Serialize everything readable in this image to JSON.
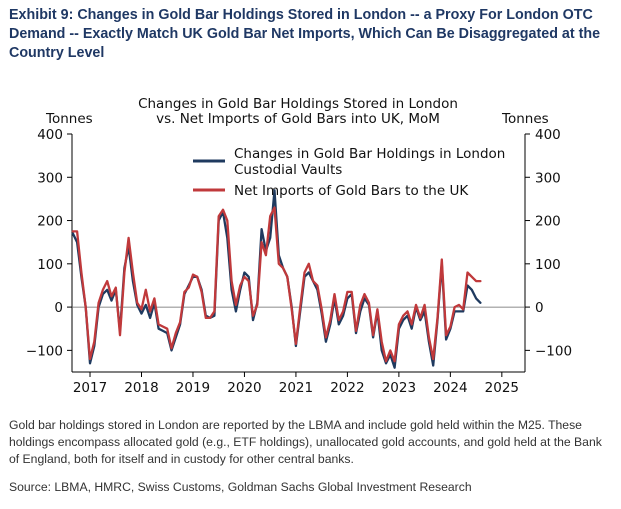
{
  "exhibit": {
    "title": "Exhibit 9: Changes in Gold Bar Holdings Stored in London -- a Proxy For London OTC Demand -- Exactly Match UK Gold Bar Net Imports, Which Can Be Disaggregated at the Country Level",
    "footnote": "Gold bar holdings stored in London are reported by the LBMA and include gold held within the M25. These holdings encompass allocated gold (e.g., ETF holdings), unallocated gold accounts, and gold held at the Bank of England, both for itself and in custody for other central banks.",
    "source": "Source: LBMA, HMRC, Swiss Customs, Goldman Sachs Global Investment Research"
  },
  "colors": {
    "series1": "#1f3a5f",
    "series2": "#c0393b",
    "axis": "#000000",
    "zero_line": "#666666"
  },
  "chart_data": {
    "type": "line",
    "title": "Changes in Gold Bar Holdings Stored in London",
    "subtitle": "vs. Net Imports of Gold Bars into UK, MoM",
    "ylabel_left": "Tonnes",
    "ylabel_right": "Tonnes",
    "ylim": [
      -150,
      400
    ],
    "xlim": [
      2016.65,
      2025.45
    ],
    "yticks": [
      -100,
      0,
      100,
      200,
      300,
      400
    ],
    "ytick_labels": [
      "−100",
      "0",
      "100",
      "200",
      "300",
      "400"
    ],
    "xticks": [
      2017,
      2018,
      2019,
      2020,
      2021,
      2022,
      2023,
      2024,
      2025
    ],
    "xtick_labels": [
      "2017",
      "2018",
      "2019",
      "2020",
      "2021",
      "2022",
      "2023",
      "2024",
      "2025"
    ],
    "legend_position": "top-center",
    "series": [
      {
        "name": "Changes in Gold Bar Holdings in London Custodial Vaults",
        "legend_line1": "Changes in Gold Bar Holdings in London",
        "legend_line2": "Custodial Vaults",
        "color": "#1f3a5f",
        "x": [
          2016.667,
          2016.75,
          2016.833,
          2016.917,
          2017.0,
          2017.083,
          2017.167,
          2017.25,
          2017.333,
          2017.417,
          2017.5,
          2017.583,
          2017.667,
          2017.75,
          2017.833,
          2017.917,
          2018.0,
          2018.083,
          2018.167,
          2018.25,
          2018.333,
          2018.417,
          2018.5,
          2018.583,
          2018.667,
          2018.75,
          2018.833,
          2018.917,
          2019.0,
          2019.083,
          2019.167,
          2019.25,
          2019.333,
          2019.417,
          2019.5,
          2019.583,
          2019.667,
          2019.75,
          2019.833,
          2019.917,
          2020.0,
          2020.083,
          2020.167,
          2020.25,
          2020.333,
          2020.417,
          2020.5,
          2020.583,
          2020.667,
          2020.75,
          2020.833,
          2020.917,
          2021.0,
          2021.083,
          2021.167,
          2021.25,
          2021.333,
          2021.417,
          2021.5,
          2021.583,
          2021.667,
          2021.75,
          2021.833,
          2021.917,
          2022.0,
          2022.083,
          2022.167,
          2022.25,
          2022.333,
          2022.417,
          2022.5,
          2022.583,
          2022.667,
          2022.75,
          2022.833,
          2022.917,
          2023.0,
          2023.083,
          2023.167,
          2023.25,
          2023.333,
          2023.417,
          2023.5,
          2023.583,
          2023.667,
          2023.75,
          2023.833,
          2023.917,
          2024.0,
          2024.083,
          2024.167,
          2024.25,
          2024.333,
          2024.417,
          2024.5,
          2024.583
        ],
        "values": [
          170,
          150,
          70,
          0,
          -130,
          -90,
          0,
          30,
          40,
          15,
          40,
          -55,
          90,
          140,
          60,
          5,
          -15,
          5,
          -25,
          10,
          -50,
          -55,
          -60,
          -100,
          -70,
          -40,
          30,
          50,
          70,
          70,
          40,
          -20,
          -25,
          -20,
          200,
          220,
          160,
          40,
          -10,
          40,
          80,
          70,
          -30,
          10,
          180,
          130,
          160,
          270,
          120,
          90,
          70,
          0,
          -90,
          -10,
          70,
          80,
          60,
          40,
          -15,
          -80,
          -40,
          20,
          -40,
          -20,
          20,
          30,
          -60,
          -10,
          20,
          5,
          -70,
          -10,
          -100,
          -130,
          -110,
          -140,
          -50,
          -30,
          -20,
          -50,
          0,
          -30,
          -10,
          -80,
          -135,
          -30,
          100,
          -75,
          -50,
          -10,
          -10,
          -10,
          50,
          40,
          20,
          10
        ]
      },
      {
        "name": "Net Imports of Gold Bars to the UK",
        "legend_line1": "Net Imports of Gold Bars to the UK",
        "color": "#c0393b",
        "x": [
          2016.667,
          2016.75,
          2016.833,
          2016.917,
          2017.0,
          2017.083,
          2017.167,
          2017.25,
          2017.333,
          2017.417,
          2017.5,
          2017.583,
          2017.667,
          2017.75,
          2017.833,
          2017.917,
          2018.0,
          2018.083,
          2018.167,
          2018.25,
          2018.333,
          2018.417,
          2018.5,
          2018.583,
          2018.667,
          2018.75,
          2018.833,
          2018.917,
          2019.0,
          2019.083,
          2019.167,
          2019.25,
          2019.333,
          2019.417,
          2019.5,
          2019.583,
          2019.667,
          2019.75,
          2019.833,
          2019.917,
          2020.0,
          2020.083,
          2020.167,
          2020.25,
          2020.333,
          2020.417,
          2020.5,
          2020.583,
          2020.667,
          2020.75,
          2020.833,
          2020.917,
          2021.0,
          2021.083,
          2021.167,
          2021.25,
          2021.333,
          2021.417,
          2021.5,
          2021.583,
          2021.667,
          2021.75,
          2021.833,
          2021.917,
          2022.0,
          2022.083,
          2022.167,
          2022.25,
          2022.333,
          2022.417,
          2022.5,
          2022.583,
          2022.667,
          2022.75,
          2022.833,
          2022.917,
          2023.0,
          2023.083,
          2023.167,
          2023.25,
          2023.333,
          2023.417,
          2023.5,
          2023.583,
          2023.667,
          2023.75,
          2023.833,
          2023.917,
          2024.0,
          2024.083,
          2024.167,
          2024.25,
          2024.333,
          2024.417,
          2024.5,
          2024.583
        ],
        "values": [
          175,
          175,
          80,
          0,
          -120,
          -80,
          10,
          40,
          60,
          25,
          45,
          -65,
          80,
          160,
          80,
          10,
          -5,
          40,
          -10,
          20,
          -40,
          -45,
          -50,
          -95,
          -60,
          -35,
          35,
          45,
          75,
          70,
          35,
          -25,
          -25,
          -10,
          210,
          225,
          200,
          60,
          5,
          50,
          70,
          60,
          -20,
          5,
          150,
          120,
          210,
          230,
          100,
          90,
          70,
          -5,
          -85,
          0,
          80,
          100,
          60,
          50,
          -5,
          -70,
          -30,
          30,
          -30,
          -10,
          35,
          35,
          -55,
          5,
          30,
          10,
          -65,
          -5,
          -80,
          -125,
          -100,
          -125,
          -40,
          -20,
          -10,
          -40,
          5,
          -25,
          5,
          -70,
          -120,
          -25,
          110,
          -65,
          -45,
          0,
          5,
          -5,
          80,
          70,
          60,
          60
        ]
      }
    ]
  }
}
